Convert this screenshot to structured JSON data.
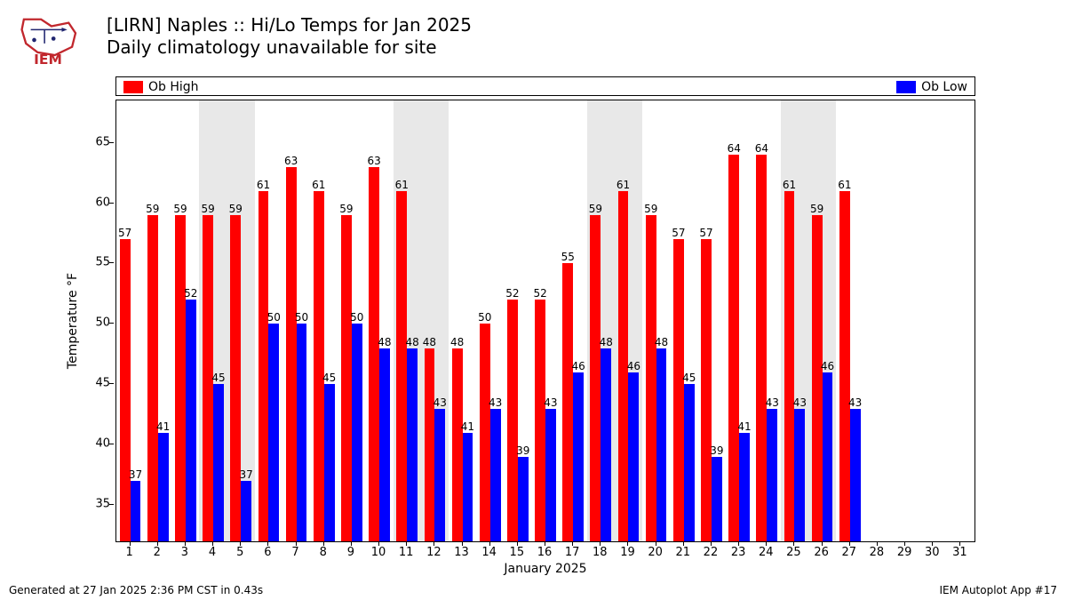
{
  "title_line1": "[LIRN] Naples :: Hi/Lo Temps for Jan 2025",
  "title_line2": "Daily climatology unavailable for site",
  "footer_left": "Generated at 27 Jan 2025 2:36 PM CST in 0.43s",
  "footer_right": "IEM Autoplot App #17",
  "logo": {
    "outline_color": "#c1272d",
    "anno_color": "#20256f",
    "text": "IEM"
  },
  "legend": {
    "high": {
      "label": "Ob High",
      "color": "#ff0000"
    },
    "low": {
      "label": "Ob Low",
      "color": "#0000ff"
    }
  },
  "chart": {
    "type": "grouped-bar",
    "xaxis_label": "January 2025",
    "yaxis_label": "Temperature °F",
    "background_color": "#ffffff",
    "weekend_band_color": "#e8e8e8",
    "grid_color": "rgba(0,0,0,0.08)",
    "bar_width_ratio": 0.38,
    "label_fontsize": 12,
    "tick_fontsize": 13,
    "axis_label_fontsize": 14,
    "title_fontsize": 20,
    "ylim": [
      32,
      68.5
    ],
    "yticks": [
      35,
      40,
      45,
      50,
      55,
      60,
      65
    ],
    "days": [
      1,
      2,
      3,
      4,
      5,
      6,
      7,
      8,
      9,
      10,
      11,
      12,
      13,
      14,
      15,
      16,
      17,
      18,
      19,
      20,
      21,
      22,
      23,
      24,
      25,
      26,
      27,
      28,
      29,
      30,
      31
    ],
    "weekend_bands": [
      [
        4,
        5
      ],
      [
        11,
        12
      ],
      [
        18,
        19
      ],
      [
        25,
        26
      ]
    ],
    "high_values": [
      57,
      59,
      59,
      59,
      59,
      61,
      63,
      61,
      59,
      63,
      61,
      48,
      48,
      50,
      52,
      52,
      55,
      59,
      61,
      59,
      57,
      57,
      64,
      64,
      61,
      59,
      61,
      null,
      null,
      null,
      null
    ],
    "low_values": [
      37,
      41,
      52,
      45,
      37,
      50,
      50,
      45,
      50,
      48,
      48,
      43,
      41,
      43,
      39,
      43,
      46,
      48,
      46,
      48,
      45,
      39,
      41,
      43,
      43,
      46,
      43,
      null,
      null,
      null,
      null
    ]
  }
}
